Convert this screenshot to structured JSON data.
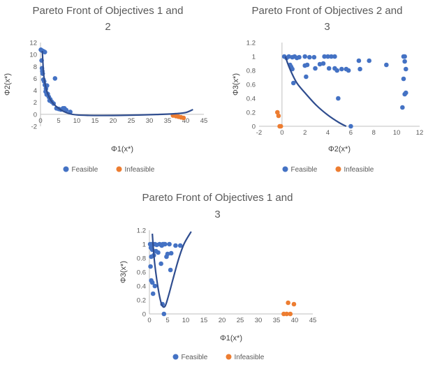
{
  "colors": {
    "feasible": "#4472C4",
    "infeasible": "#ED7D31",
    "curve": "#2F4D8F",
    "axis": "#BFBFBF"
  },
  "legend": {
    "feasible": "Feasible",
    "infeasible": "Infeasible"
  },
  "chart_data": [
    {
      "type": "scatter",
      "title_line1": "Pareto Front of Objectives 1 and",
      "title_line2": "2",
      "xlabel": "Φ1(x*)",
      "ylabel": "Φ2(x*)",
      "xlim": [
        0,
        45
      ],
      "ylim": [
        -2,
        12
      ],
      "xticks": [
        0,
        5,
        10,
        15,
        20,
        25,
        30,
        35,
        40,
        45
      ],
      "yticks": [
        -2,
        0,
        2,
        4,
        6,
        8,
        10,
        12
      ],
      "legend_position": "bottom",
      "series": [
        {
          "name": "Feasible",
          "points": [
            [
              0.1,
              10.8
            ],
            [
              0.3,
              10.7
            ],
            [
              0.6,
              10.6
            ],
            [
              0.9,
              10.5
            ],
            [
              1.2,
              10.4
            ],
            [
              0.3,
              9.0
            ],
            [
              0.4,
              7.7
            ],
            [
              0.5,
              7.2
            ],
            [
              0.6,
              6.8
            ],
            [
              0.8,
              5.8
            ],
            [
              1.0,
              5.5
            ],
            [
              1.2,
              4.9
            ],
            [
              1.5,
              4.3
            ],
            [
              1.8,
              4.8
            ],
            [
              2.0,
              3.4
            ],
            [
              2.3,
              2.9
            ],
            [
              2.7,
              2.5
            ],
            [
              3.1,
              2.1
            ],
            [
              3.6,
              1.8
            ],
            [
              4.0,
              6.0
            ],
            [
              4.4,
              1.0
            ],
            [
              5.0,
              0.9
            ],
            [
              5.6,
              0.8
            ],
            [
              6.2,
              1.0
            ],
            [
              6.6,
              1.0
            ],
            [
              7.1,
              0.7
            ],
            [
              8.2,
              0.4
            ],
            [
              1.4,
              3.8
            ],
            [
              1.7,
              3.3
            ],
            [
              2.5,
              2.3
            ]
          ]
        },
        {
          "name": "Infeasible",
          "points": [
            [
              36.5,
              -0.2
            ],
            [
              37.3,
              -0.3
            ],
            [
              38.0,
              -0.4
            ],
            [
              38.7,
              -0.5
            ],
            [
              39.4,
              -0.6
            ]
          ]
        }
      ],
      "trend": [
        [
          0.5,
          10.6
        ],
        [
          0.9,
          6.5
        ],
        [
          1.5,
          4.4
        ],
        [
          2.5,
          2.7
        ],
        [
          4,
          1.5
        ],
        [
          6,
          0.6
        ],
        [
          8,
          0.1
        ],
        [
          10,
          -0.1
        ],
        [
          13,
          -0.18
        ],
        [
          17,
          -0.2
        ],
        [
          22,
          -0.18
        ],
        [
          27,
          -0.12
        ],
        [
          32,
          -0.03
        ],
        [
          37,
          0.1
        ],
        [
          40,
          0.3
        ],
        [
          42,
          0.8
        ]
      ]
    },
    {
      "type": "scatter",
      "title_line1": "Pareto Front of Objectives 2 and",
      "title_line2": "3",
      "xlabel": "Φ2(x*)",
      "ylabel": "Φ3(x*)",
      "xlim": [
        -2,
        12
      ],
      "ylim": [
        0,
        1.2
      ],
      "xticks": [
        -2,
        0,
        2,
        4,
        6,
        8,
        10,
        12
      ],
      "yticks": [
        0,
        0.2,
        0.4,
        0.6,
        0.8,
        1,
        1.2
      ],
      "legend_position": "bottom",
      "series": [
        {
          "name": "Feasible",
          "points": [
            [
              0.2,
              1.0
            ],
            [
              0.4,
              0.98
            ],
            [
              0.6,
              1.0
            ],
            [
              0.9,
              0.99
            ],
            [
              1.1,
              1.0
            ],
            [
              1.3,
              0.98
            ],
            [
              1.5,
              0.99
            ],
            [
              2.0,
              1.0
            ],
            [
              2.4,
              0.99
            ],
            [
              2.8,
              0.99
            ],
            [
              3.7,
              1.0
            ],
            [
              4.0,
              1.0
            ],
            [
              4.3,
              1.0
            ],
            [
              4.6,
              1.0
            ],
            [
              6.7,
              0.94
            ],
            [
              7.6,
              0.94
            ],
            [
              0.7,
              0.88
            ],
            [
              0.8,
              0.85
            ],
            [
              0.9,
              0.82
            ],
            [
              1.0,
              0.62
            ],
            [
              2.0,
              0.87
            ],
            [
              2.2,
              0.88
            ],
            [
              2.9,
              0.83
            ],
            [
              3.3,
              0.89
            ],
            [
              3.6,
              0.9
            ],
            [
              4.1,
              0.83
            ],
            [
              4.6,
              0.83
            ],
            [
              4.8,
              0.8
            ],
            [
              5.2,
              0.82
            ],
            [
              5.6,
              0.82
            ],
            [
              5.8,
              0.8
            ],
            [
              6.8,
              0.82
            ],
            [
              9.1,
              0.88
            ],
            [
              2.1,
              0.71
            ],
            [
              4.9,
              0.4
            ],
            [
              10.5,
              0.27
            ],
            [
              10.6,
              0.68
            ],
            [
              10.6,
              1.0
            ],
            [
              10.7,
              1.0
            ],
            [
              10.7,
              0.93
            ],
            [
              10.8,
              0.82
            ],
            [
              10.8,
              0.48
            ],
            [
              10.7,
              0.46
            ],
            [
              6.0,
              0.0
            ]
          ]
        },
        {
          "name": "Infeasible",
          "points": [
            [
              -0.4,
              0.2
            ],
            [
              -0.3,
              0.15
            ],
            [
              -0.2,
              0.0
            ],
            [
              -0.1,
              0.0
            ]
          ]
        }
      ],
      "trend": [
        [
          0.3,
          1.0
        ],
        [
          0.5,
          0.9
        ],
        [
          0.8,
          0.78
        ],
        [
          1.3,
          0.62
        ],
        [
          2,
          0.48
        ],
        [
          3,
          0.3
        ],
        [
          4,
          0.16
        ],
        [
          5,
          0.05
        ],
        [
          5.6,
          0.0
        ]
      ]
    },
    {
      "type": "scatter",
      "title_line1": "Pareto Front of Objectives 1 and",
      "title_line2": "3",
      "xlabel": "Φ1(x*)",
      "ylabel": "Φ3(x*)",
      "xlim": [
        0,
        45
      ],
      "ylim": [
        0,
        1.2
      ],
      "xticks": [
        0,
        5,
        10,
        15,
        20,
        25,
        30,
        35,
        40,
        45
      ],
      "yticks": [
        0,
        0.2,
        0.4,
        0.6,
        0.8,
        1,
        1.2
      ],
      "legend_position": "bottom",
      "series": [
        {
          "name": "Feasible",
          "points": [
            [
              0.2,
              1.0
            ],
            [
              0.4,
              0.95
            ],
            [
              0.5,
              0.82
            ],
            [
              0.6,
              1.0
            ],
            [
              0.8,
              0.92
            ],
            [
              1.0,
              1.0
            ],
            [
              1.2,
              0.84
            ],
            [
              1.5,
              1.0
            ],
            [
              1.8,
              0.9
            ],
            [
              2.0,
              0.99
            ],
            [
              2.4,
              0.88
            ],
            [
              2.8,
              1.0
            ],
            [
              3.2,
              0.72
            ],
            [
              3.4,
              0.98
            ],
            [
              3.7,
              1.0
            ],
            [
              4.0,
              1.0
            ],
            [
              4.3,
              1.0
            ],
            [
              4.7,
              0.82
            ],
            [
              5.0,
              0.86
            ],
            [
              5.5,
              1.0
            ],
            [
              5.8,
              0.63
            ],
            [
              6.0,
              0.87
            ],
            [
              7.2,
              0.98
            ],
            [
              8.5,
              0.98
            ],
            [
              0.3,
              0.68
            ],
            [
              0.5,
              0.48
            ],
            [
              0.8,
              0.45
            ],
            [
              1.0,
              0.29
            ],
            [
              1.5,
              0.4
            ],
            [
              4.0,
              0.0
            ],
            [
              3.6,
              0.14
            ]
          ]
        },
        {
          "name": "Infeasible",
          "points": [
            [
              37.0,
              0.0
            ],
            [
              37.8,
              0.0
            ],
            [
              38.2,
              0.16
            ],
            [
              38.8,
              0.0
            ],
            [
              39.8,
              0.14
            ]
          ]
        }
      ],
      "trend": [
        [
          0.8,
          1.15
        ],
        [
          1.3,
          0.8
        ],
        [
          2,
          0.5
        ],
        [
          2.8,
          0.25
        ],
        [
          3.5,
          0.12
        ],
        [
          4.3,
          0.11
        ],
        [
          5.2,
          0.25
        ],
        [
          6.5,
          0.5
        ],
        [
          8,
          0.78
        ],
        [
          9.5,
          1.0
        ],
        [
          11.5,
          1.18
        ]
      ]
    }
  ]
}
